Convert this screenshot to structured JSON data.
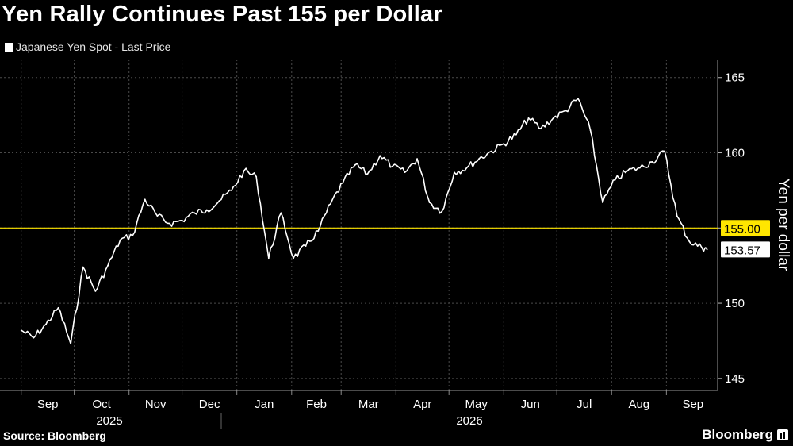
{
  "title": "Yen Rally Continues Past 155 per Dollar",
  "legend_label": "Japanese Yen Spot - Last Price",
  "source": "Source: Bloomberg",
  "brand": "Bloomberg",
  "colors": {
    "background": "#000000",
    "series": "#ffffff",
    "reference": "#ffe600",
    "grid": "#4a4a4a"
  },
  "chart_data": {
    "type": "line",
    "title": "Yen Rally Continues Past 155 per Dollar",
    "ylabel": "Yen per dollar",
    "ylim": [
      144.2,
      166.2
    ],
    "yticks": [
      145,
      150,
      155,
      160,
      165
    ],
    "grid": true,
    "months": [
      "Sep",
      "Oct",
      "Nov",
      "Dec",
      "Jan",
      "Feb",
      "Mar",
      "Apr",
      "May",
      "Jun",
      "Jul",
      "Aug",
      "Sep"
    ],
    "years": [
      "2025",
      "2026"
    ],
    "reference_line": {
      "value": 155.0,
      "label": "155.00"
    },
    "last_value_label": "153.57",
    "series": [
      {
        "name": "Japanese Yen Spot - Last Price",
        "x": [
          "2025-09-01",
          "2025-09-08",
          "2025-09-15",
          "2025-09-22",
          "2025-09-29",
          "2025-10-06",
          "2025-10-13",
          "2025-10-20",
          "2025-10-27",
          "2025-11-03",
          "2025-11-10",
          "2025-11-17",
          "2025-11-24",
          "2025-12-01",
          "2025-12-08",
          "2025-12-15",
          "2025-12-22",
          "2025-12-29",
          "2026-01-05",
          "2026-01-12",
          "2026-01-19",
          "2026-01-26",
          "2026-02-02",
          "2026-02-09",
          "2026-02-16",
          "2026-02-23",
          "2026-03-02",
          "2026-03-09",
          "2026-03-16",
          "2026-03-23",
          "2026-03-30",
          "2026-04-06",
          "2026-04-13",
          "2026-04-20",
          "2026-04-27",
          "2026-05-04",
          "2026-05-11",
          "2026-05-18",
          "2026-05-25",
          "2026-06-01",
          "2026-06-08",
          "2026-06-15",
          "2026-06-22",
          "2026-06-29",
          "2026-07-06",
          "2026-07-13",
          "2026-07-20",
          "2026-07-27",
          "2026-08-03",
          "2026-08-10",
          "2026-08-17",
          "2026-08-24",
          "2026-08-31",
          "2026-09-07",
          "2026-09-14",
          "2026-09-21",
          "2026-09-24"
        ],
        "values": [
          148.2,
          147.7,
          148.6,
          149.7,
          147.3,
          152.4,
          150.8,
          152.5,
          154.2,
          154.5,
          156.9,
          155.8,
          155.3,
          155.5,
          156.0,
          156.2,
          156.8,
          157.5,
          158.8,
          158.4,
          153.0,
          156.0,
          153.0,
          153.8,
          154.8,
          156.6,
          158.0,
          159.2,
          158.6,
          159.8,
          159.1,
          158.7,
          159.6,
          156.7,
          156.1,
          158.7,
          159.0,
          159.6,
          160.1,
          160.6,
          161.2,
          162.3,
          161.6,
          162.3,
          162.8,
          163.6,
          161.5,
          156.7,
          158.2,
          158.8,
          159.0,
          159.4,
          160.1,
          155.8,
          154.1,
          153.7,
          153.57
        ]
      }
    ]
  }
}
